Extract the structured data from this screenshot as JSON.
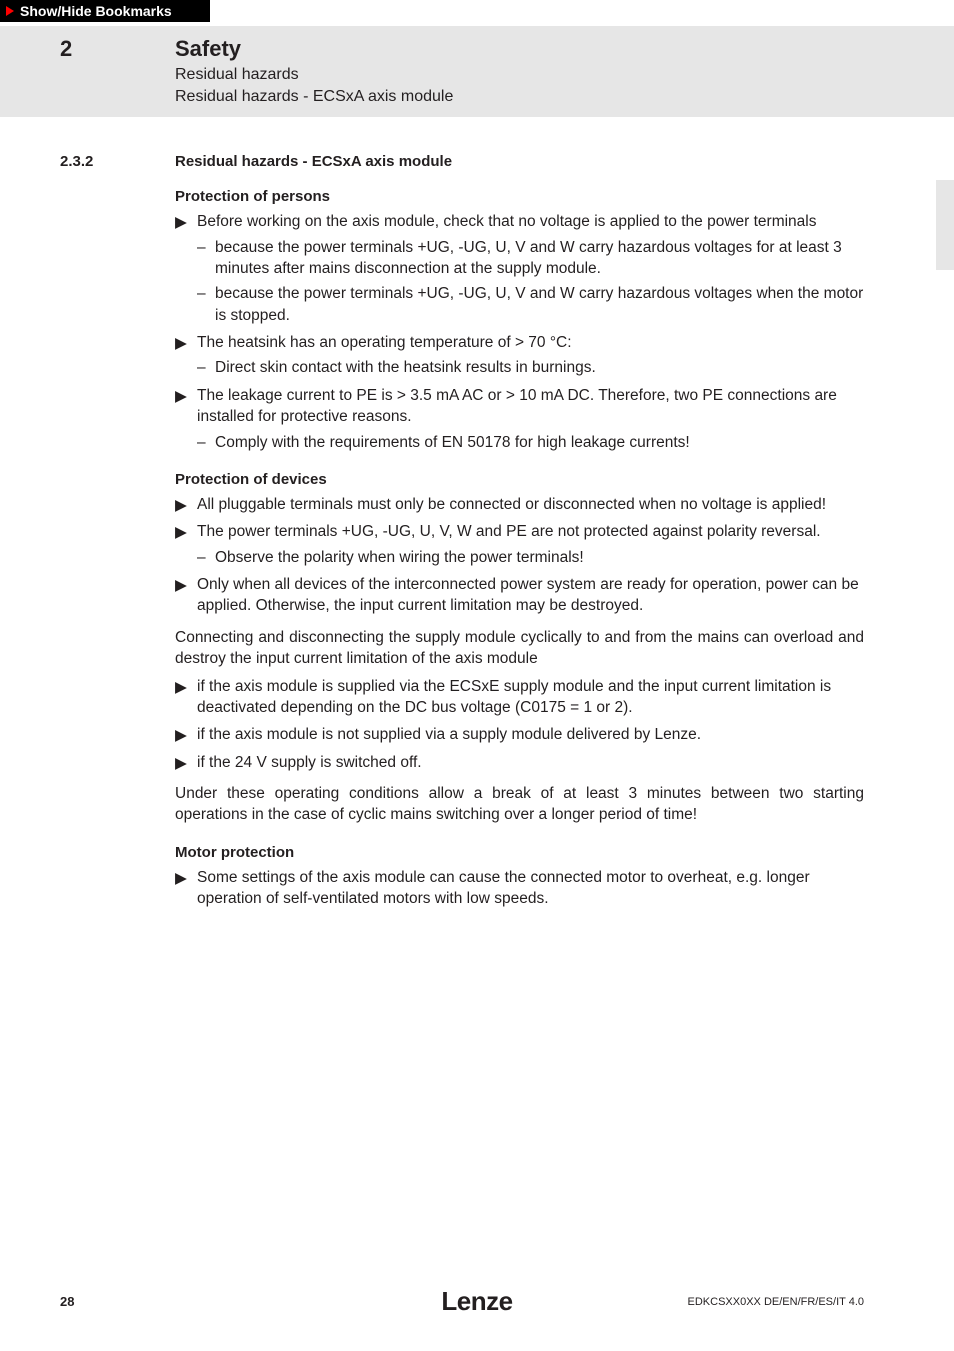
{
  "bookmark": {
    "label": "Show/Hide Bookmarks"
  },
  "header": {
    "chapter_num": "2",
    "title": "Safety",
    "sub1": "Residual hazards",
    "sub2": "Residual hazards - ECSxA axis module"
  },
  "section": {
    "num": "2.3.2",
    "title": "Residual hazards - ECSxA axis module"
  },
  "persons": {
    "heading": "Protection of persons",
    "b1": "Before working on the axis module, check that no voltage is applied to the power terminals",
    "b1s1": "because the power terminals +UG, -UG, U, V and W carry hazardous voltages for at least 3 minutes after mains disconnection at the supply module.",
    "b1s2": "because the power terminals +UG, -UG, U, V and W carry hazardous voltages when the motor is stopped.",
    "b2": "The heatsink has an operating temperature of > 70 °C:",
    "b2s1": "Direct skin contact with the heatsink results in burnings.",
    "b3": "The leakage current to PE is > 3.5 mA AC or > 10 mA DC. Therefore, two PE connections are installed for protective reasons.",
    "b3s1": "Comply with the requirements of EN 50178 for high leakage currents!"
  },
  "devices": {
    "heading": "Protection of devices",
    "b1": "All pluggable terminals must only be connected or disconnected when no voltage is applied!",
    "b2": "The power terminals +UG, -UG, U, V, W and PE are not protected against polarity reversal.",
    "b2s1": "Observe the polarity when wiring the power terminals!",
    "b3": "Only when all devices of the interconnected power system are ready for operation, power can be applied. Otherwise, the input current limitation may be destroyed.",
    "p1": "Connecting and disconnecting the supply module cyclically to and from the mains can overload and destroy the input current limitation of the axis module",
    "b4": "if the axis module is supplied via the ECSxE supply module and the input current limitation is deactivated depending on the DC bus voltage (C0175 = 1 or 2).",
    "b5": "if the axis module is not supplied via a supply module delivered by Lenze.",
    "b6": "if the 24 V supply is switched off.",
    "p2": "Under these operating conditions allow a break of at least 3 minutes between two starting operations in the case of cyclic mains switching over a longer period of time!"
  },
  "motor": {
    "heading": "Motor protection",
    "b1": "Some settings of the axis module can cause the connected motor to overheat, e.g. longer operation of self-ventilated motors with low speeds."
  },
  "footer": {
    "page": "28",
    "logo": "Lenze",
    "doc_code": "EDKCSXX0XX DE/EN/FR/ES/IT 4.0"
  },
  "glyphs": {
    "pointer": "▶",
    "dash": "–"
  },
  "colors": {
    "band": "#e6e6e6",
    "text": "#231f20",
    "bookmark_bg": "#000000",
    "bookmark_tri": "#ff0000"
  }
}
